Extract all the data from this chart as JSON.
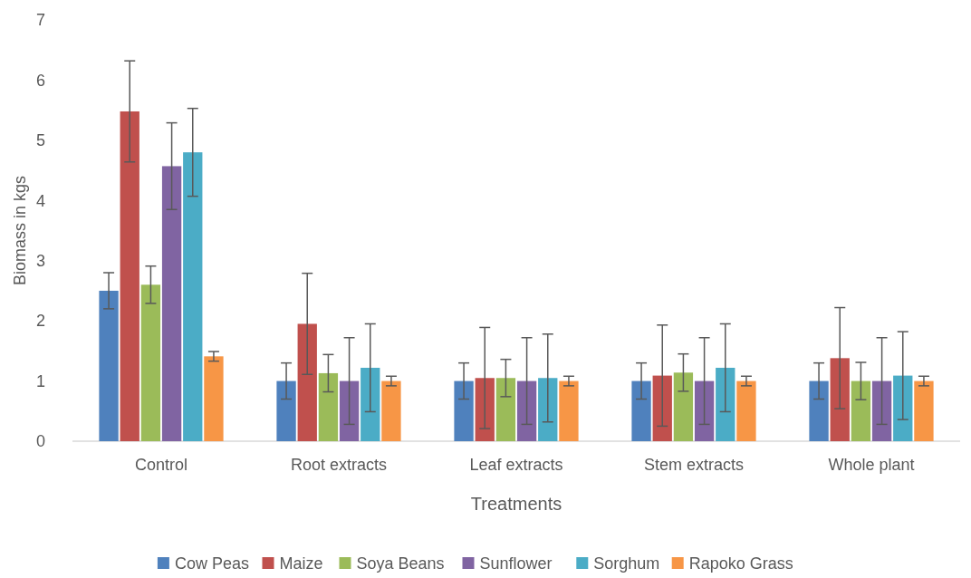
{
  "chart_data": {
    "type": "bar",
    "xlabel": "Treatments",
    "ylabel": "Biomass in kgs",
    "categories": [
      "Control",
      "Root extracts",
      "Leaf extracts",
      "Stem extracts",
      "Whole plant"
    ],
    "series": [
      {
        "name": "Cow Peas",
        "color": "#4f81bd",
        "values": [
          2.5,
          1.0,
          1.0,
          1.0,
          1.0
        ],
        "errors": [
          0.3,
          0.3,
          0.3,
          0.3,
          0.3
        ]
      },
      {
        "name": "Maize",
        "color": "#c0504d",
        "values": [
          5.48,
          1.95,
          1.05,
          1.09,
          1.38
        ],
        "errors": [
          0.84,
          0.84,
          0.84,
          0.84,
          0.84
        ]
      },
      {
        "name": "Soya Beans",
        "color": "#9bbb59",
        "values": [
          2.6,
          1.13,
          1.05,
          1.14,
          1.0
        ],
        "errors": [
          0.31,
          0.31,
          0.31,
          0.31,
          0.31
        ]
      },
      {
        "name": "Sunflower",
        "color": "#8064a2",
        "values": [
          4.57,
          1.0,
          1.0,
          1.0,
          1.0
        ],
        "errors": [
          0.72,
          0.72,
          0.72,
          0.72,
          0.72
        ]
      },
      {
        "name": "Sorghum",
        "color": "#4bacc6",
        "values": [
          4.8,
          1.22,
          1.05,
          1.22,
          1.09
        ],
        "errors": [
          0.73,
          0.73,
          0.73,
          0.73,
          0.73
        ]
      },
      {
        "name": "Rapoko Grass",
        "color": "#f79646",
        "values": [
          1.41,
          1.0,
          1.0,
          1.0,
          1.0
        ],
        "errors": [
          0.08,
          0.08,
          0.08,
          0.08,
          0.08
        ]
      }
    ],
    "ylim": [
      0,
      7
    ],
    "yticks": [
      0,
      1,
      2,
      3,
      4,
      5,
      6,
      7
    ],
    "grid": false,
    "legend": "bottom"
  }
}
